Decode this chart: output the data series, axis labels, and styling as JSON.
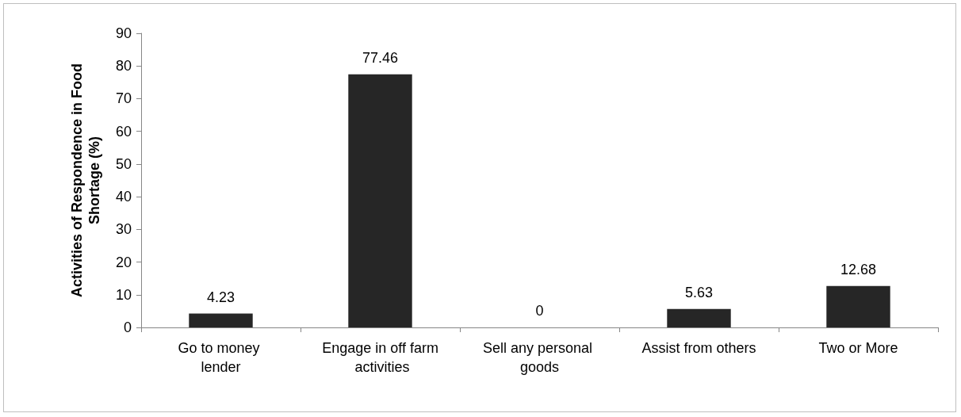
{
  "chart_data": {
    "type": "bar",
    "ylabel": "Activities of Respondence in Food Shortage (%)",
    "categories": [
      "Go to money lender",
      "Engage in off farm activities",
      "Sell any personal goods",
      "Assist from others",
      "Two or More"
    ],
    "values": [
      4.23,
      77.46,
      0,
      5.63,
      12.68
    ],
    "color": "#262626",
    "ylim": [
      0,
      90
    ],
    "yticks": [
      0,
      10,
      20,
      30,
      40,
      50,
      60,
      70,
      80,
      90
    ],
    "grid": false,
    "data_labels": true
  }
}
